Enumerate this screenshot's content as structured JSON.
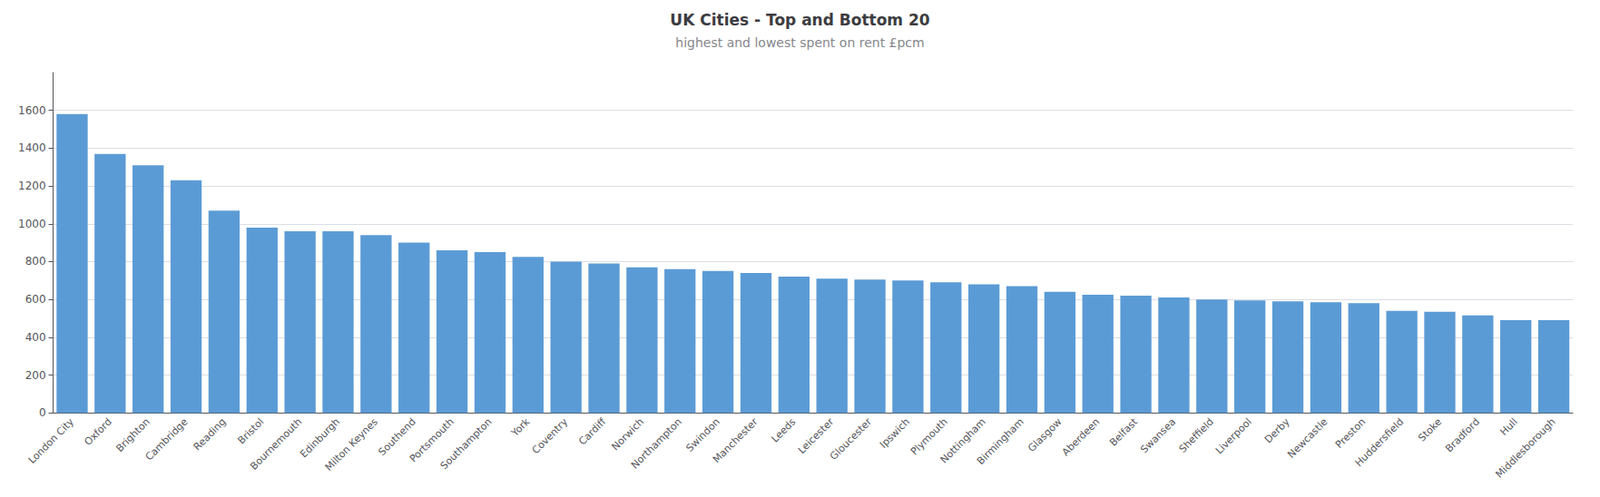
{
  "chart_data": {
    "type": "bar",
    "title": "UK Cities - Top and Bottom 20",
    "subtitle": "highest and lowest spent on rent £pcm",
    "categories": [
      "London City",
      "Oxford",
      "Brighton",
      "Cambridge",
      "Reading",
      "Bristol",
      "Bournemouth",
      "Edinburgh",
      "Milton Keynes",
      "Southend",
      "Portsmouth",
      "Southampton",
      "York",
      "Coventry",
      "Cardiff",
      "Norwich",
      "Northampton",
      "Swindon",
      "Manchester",
      "Leeds",
      "Leicester",
      "Gloucester",
      "Ipswich",
      "Plymouth",
      "Nottingham",
      "Birmingham",
      "Glasgow",
      "Aberdeen",
      "Belfast",
      "Swansea",
      "Sheffield",
      "Liverpool",
      "Derby",
      "Newcastle",
      "Preston",
      "Huddersfield",
      "Stoke",
      "Bradford",
      "Hull",
      "Middlesborough"
    ],
    "values": [
      1580,
      1370,
      1310,
      1230,
      1070,
      980,
      960,
      960,
      940,
      900,
      860,
      850,
      825,
      800,
      790,
      770,
      760,
      750,
      740,
      720,
      710,
      705,
      700,
      690,
      680,
      670,
      640,
      625,
      620,
      610,
      600,
      595,
      590,
      585,
      580,
      540,
      535,
      515,
      490,
      490
    ],
    "color": "#5b9bd5",
    "ylim": [
      0,
      1800
    ],
    "yticks": [
      0,
      200,
      400,
      600,
      800,
      1000,
      1200,
      1400,
      1600
    ],
    "grid": true
  }
}
